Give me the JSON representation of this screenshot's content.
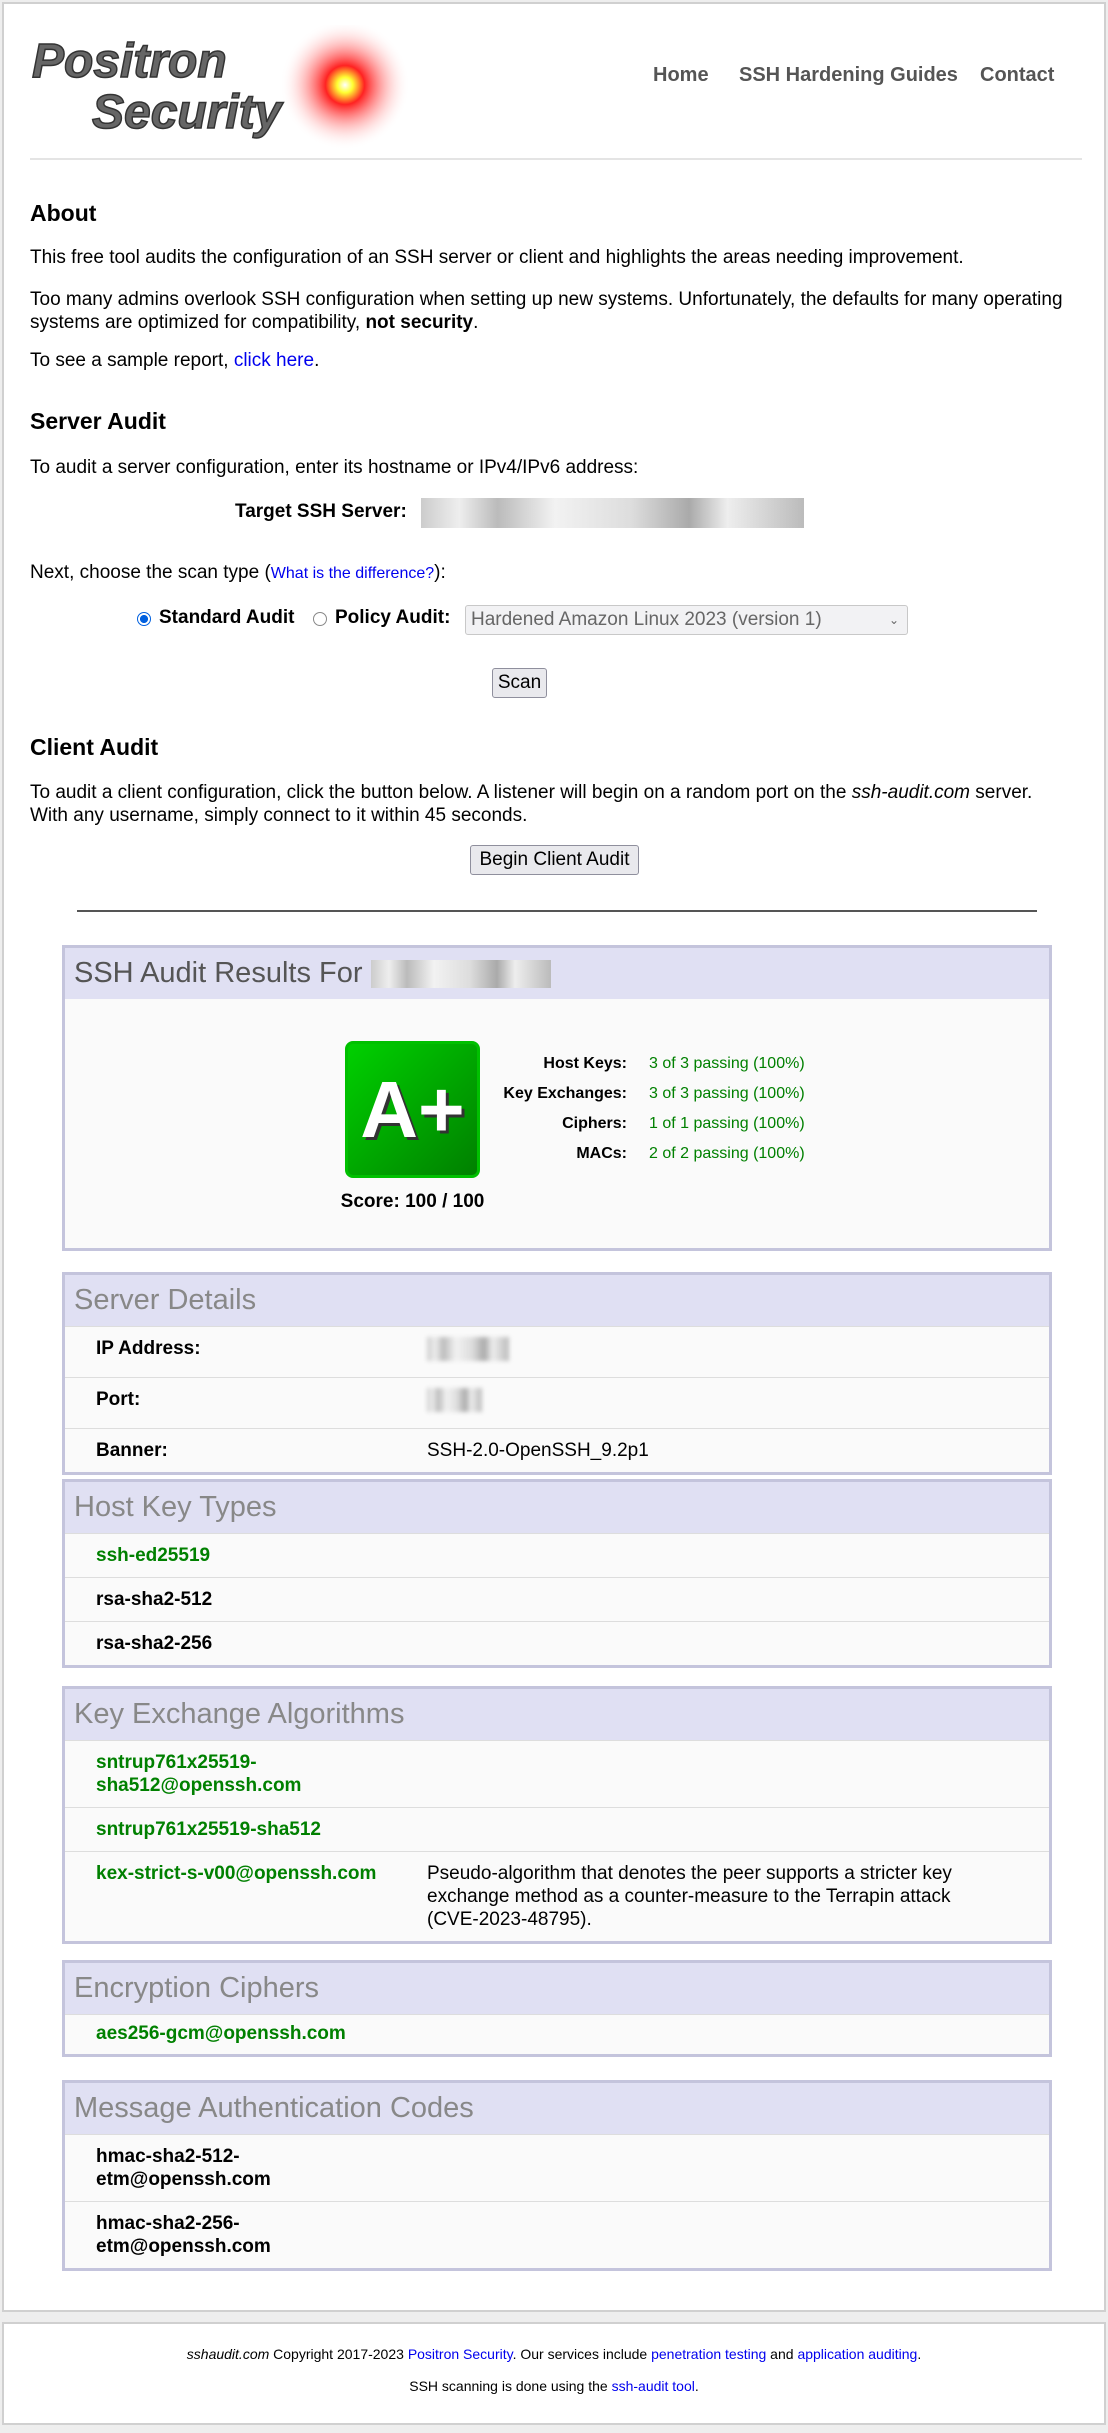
{
  "header": {
    "logo_text": "Positron Security",
    "nav": [
      {
        "label": "Home"
      },
      {
        "label": "SSH Hardening Guides"
      },
      {
        "label": "Contact"
      }
    ]
  },
  "about": {
    "title": "About",
    "p1": "This free tool audits the configuration of an SSH server or client and highlights the areas needing improvement.",
    "p2": "Too many admins overlook SSH configuration when setting up new systems. Unfortunately, the defaults for many operating systems are optimized for compatibility, ",
    "p2_bold": "not security",
    "p2_end": ".",
    "p3": "To see a sample report, ",
    "p3_link": "click here",
    "p3_end": "."
  },
  "server_audit": {
    "title": "Server Audit",
    "intro": "To audit a server configuration, enter its hostname or IPv4/IPv6 address:",
    "target_label": "Target SSH Server:",
    "scan_type_text": "Next, choose the scan type (",
    "scan_type_link": "What is the difference?",
    "scan_type_end": "):",
    "standard_label": "Standard Audit",
    "policy_label": "Policy Audit:",
    "standard_selected": true,
    "policy_value": "Hardened Amazon Linux 2023 (version 1)",
    "scan_button": "Scan"
  },
  "client_audit": {
    "title": "Client Audit",
    "p_a": "To audit a client configuration, click the button below. A listener will begin on a random port on the ",
    "p_italic": "ssh-audit.com",
    "p_b": " server. With any username, simply connect to it within 45 seconds.",
    "button": "Begin Client Audit"
  },
  "results": {
    "title": "SSH Audit Results For",
    "grade": "A+",
    "score": "Score: 100 / 100",
    "grade_color": "#00b000",
    "stats": [
      {
        "label": "Host Keys:",
        "value": "3 of 3 passing (100%)"
      },
      {
        "label": "Key Exchanges:",
        "value": "3 of 3 passing (100%)"
      },
      {
        "label": "Ciphers:",
        "value": "1 of 1 passing (100%)"
      },
      {
        "label": "MACs:",
        "value": "2 of 2 passing (100%)"
      }
    ]
  },
  "server_details": {
    "title": "Server Details",
    "rows": [
      {
        "label": "IP Address:"
      },
      {
        "label": "Port:"
      },
      {
        "label": "Banner:",
        "value": "SSH-2.0-OpenSSH_9.2p1"
      }
    ]
  },
  "host_keys": {
    "title": "Host Key Types",
    "items": [
      {
        "name": "ssh-ed25519",
        "status": "good"
      },
      {
        "name": "rsa-sha2-512"
      },
      {
        "name": "rsa-sha2-256"
      }
    ]
  },
  "kex": {
    "title": "Key Exchange Algorithms",
    "items": [
      {
        "name": "sntrup761x25519-sha512@openssh.com",
        "status": "good"
      },
      {
        "name": "sntrup761x25519-sha512",
        "status": "good"
      },
      {
        "name": "kex-strict-s-v00@openssh.com",
        "status": "good",
        "note": "Pseudo-algorithm that denotes the peer supports a stricter key exchange method as a counter-measure to the Terrapin attack (CVE-2023-48795)."
      }
    ]
  },
  "ciphers": {
    "title": "Encryption Ciphers",
    "items": [
      {
        "name": "aes256-gcm@openssh.com",
        "status": "good"
      }
    ]
  },
  "macs": {
    "title": "Message Authentication Codes",
    "items": [
      {
        "name": "hmac-sha2-512-etm@openssh.com"
      },
      {
        "name": "hmac-sha2-256-etm@openssh.com"
      }
    ]
  },
  "footer": {
    "site": "sshaudit.com",
    "copy": " Copyright 2017-2023 ",
    "company": "Positron Security",
    "services": ". Our services include ",
    "pentest": "penetration testing",
    "and": " and ",
    "appaudit": "application auditing",
    "dot": ".",
    "line2": "SSH scanning is done using the ",
    "tool": "ssh-audit tool",
    "dot2": "."
  }
}
